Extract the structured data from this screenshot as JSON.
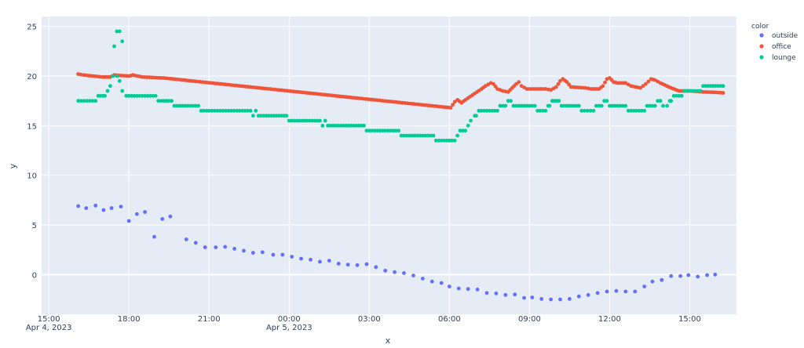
{
  "chart_data": {
    "type": "scatter",
    "title": "",
    "xlabel": "x",
    "ylabel": "y",
    "x_range_hours": [
      -0.27,
      25.75
    ],
    "ylim": [
      -4,
      26
    ],
    "x_ticks": [
      {
        "label": "15:00",
        "sublabel": "Apr 4, 2023",
        "h": 0
      },
      {
        "label": "18:00",
        "sublabel": "",
        "h": 3
      },
      {
        "label": "21:00",
        "sublabel": "",
        "h": 6
      },
      {
        "label": "00:00",
        "sublabel": "Apr 5, 2023",
        "h": 9
      },
      {
        "label": "03:00",
        "sublabel": "",
        "h": 12
      },
      {
        "label": "06:00",
        "sublabel": "",
        "h": 15
      },
      {
        "label": "09:00",
        "sublabel": "",
        "h": 18
      },
      {
        "label": "12:00",
        "sublabel": "",
        "h": 21
      },
      {
        "label": "15:00",
        "sublabel": "",
        "h": 24
      }
    ],
    "y_ticks": [
      0,
      5,
      10,
      15,
      20,
      25
    ],
    "legend": {
      "title": "color",
      "placement": "right",
      "items": [
        "outside",
        "office",
        "lounge"
      ]
    },
    "series": [
      {
        "name": "outside",
        "color": "#636efa",
        "points": [
          [
            1.1,
            6.9
          ],
          [
            1.4,
            6.7
          ],
          [
            1.75,
            6.95
          ],
          [
            2.05,
            6.5
          ],
          [
            2.35,
            6.7
          ],
          [
            2.7,
            6.85
          ],
          [
            3.0,
            5.4
          ],
          [
            3.3,
            6.1
          ],
          [
            3.6,
            6.3
          ],
          [
            3.95,
            3.8
          ],
          [
            4.25,
            5.6
          ],
          [
            4.55,
            5.85
          ],
          [
            5.15,
            3.55
          ],
          [
            5.5,
            3.2
          ],
          [
            5.85,
            2.75
          ],
          [
            6.25,
            2.75
          ],
          [
            6.6,
            2.8
          ],
          [
            6.95,
            2.6
          ],
          [
            7.3,
            2.4
          ],
          [
            7.65,
            2.2
          ],
          [
            8.0,
            2.25
          ],
          [
            8.4,
            2.0
          ],
          [
            8.75,
            2.0
          ],
          [
            9.1,
            1.8
          ],
          [
            9.45,
            1.6
          ],
          [
            9.8,
            1.5
          ],
          [
            10.15,
            1.3
          ],
          [
            10.5,
            1.4
          ],
          [
            10.85,
            1.1
          ],
          [
            11.2,
            1.0
          ],
          [
            11.55,
            0.95
          ],
          [
            11.9,
            1.05
          ],
          [
            12.25,
            0.75
          ],
          [
            12.6,
            0.4
          ],
          [
            12.95,
            0.25
          ],
          [
            13.3,
            0.15
          ],
          [
            13.65,
            -0.1
          ],
          [
            14.0,
            -0.4
          ],
          [
            14.35,
            -0.7
          ],
          [
            14.7,
            -0.85
          ],
          [
            15.0,
            -1.2
          ],
          [
            15.35,
            -1.4
          ],
          [
            15.7,
            -1.45
          ],
          [
            16.05,
            -1.5
          ],
          [
            16.4,
            -1.85
          ],
          [
            16.75,
            -1.9
          ],
          [
            17.1,
            -2.05
          ],
          [
            17.45,
            -2.0
          ],
          [
            17.8,
            -2.35
          ],
          [
            18.1,
            -2.3
          ],
          [
            18.45,
            -2.45
          ],
          [
            18.8,
            -2.5
          ],
          [
            19.15,
            -2.5
          ],
          [
            19.5,
            -2.45
          ],
          [
            19.85,
            -2.2
          ],
          [
            20.2,
            -2.05
          ],
          [
            20.55,
            -1.85
          ],
          [
            20.9,
            -1.7
          ],
          [
            21.25,
            -1.65
          ],
          [
            21.6,
            -1.7
          ],
          [
            21.95,
            -1.7
          ],
          [
            22.3,
            -1.2
          ],
          [
            22.6,
            -0.7
          ],
          [
            22.95,
            -0.55
          ],
          [
            23.3,
            -0.15
          ],
          [
            23.65,
            -0.15
          ],
          [
            23.95,
            -0.05
          ],
          [
            24.3,
            -0.2
          ],
          [
            24.65,
            -0.05
          ],
          [
            24.95,
            0.0
          ]
        ]
      },
      {
        "name": "office",
        "color": "#ef553b",
        "anchors": [
          [
            1.1,
            20.2
          ],
          [
            1.3,
            20.1
          ],
          [
            2.0,
            19.9
          ],
          [
            2.3,
            19.9
          ],
          [
            2.45,
            20.1
          ],
          [
            3.0,
            20.0
          ],
          [
            3.15,
            20.1
          ],
          [
            3.5,
            19.9
          ],
          [
            4.3,
            19.8
          ],
          [
            15.05,
            16.8
          ],
          [
            15.2,
            17.4
          ],
          [
            15.3,
            17.6
          ],
          [
            15.45,
            17.3
          ],
          [
            15.6,
            17.6
          ],
          [
            16.2,
            18.7
          ],
          [
            16.35,
            19.0
          ],
          [
            16.55,
            19.3
          ],
          [
            16.65,
            19.2
          ],
          [
            16.8,
            18.7
          ],
          [
            17.0,
            18.5
          ],
          [
            17.2,
            18.4
          ],
          [
            17.35,
            18.8
          ],
          [
            17.5,
            19.2
          ],
          [
            17.6,
            19.4
          ],
          [
            17.7,
            19.0
          ],
          [
            17.9,
            18.7
          ],
          [
            18.6,
            18.7
          ],
          [
            18.8,
            18.6
          ],
          [
            19.0,
            18.9
          ],
          [
            19.15,
            19.5
          ],
          [
            19.25,
            19.7
          ],
          [
            19.4,
            19.4
          ],
          [
            19.55,
            18.9
          ],
          [
            20.1,
            18.8
          ],
          [
            20.3,
            18.7
          ],
          [
            20.6,
            18.7
          ],
          [
            20.75,
            19.0
          ],
          [
            20.9,
            19.7
          ],
          [
            21.0,
            19.8
          ],
          [
            21.15,
            19.4
          ],
          [
            21.3,
            19.3
          ],
          [
            21.6,
            19.3
          ],
          [
            21.8,
            19.0
          ],
          [
            22.15,
            18.8
          ],
          [
            22.35,
            19.2
          ],
          [
            22.55,
            19.7
          ],
          [
            22.7,
            19.6
          ],
          [
            22.9,
            19.3
          ],
          [
            23.3,
            18.8
          ],
          [
            23.6,
            18.5
          ],
          [
            24.0,
            18.5
          ],
          [
            24.5,
            18.4
          ],
          [
            25.0,
            18.35
          ],
          [
            25.25,
            18.3
          ]
        ],
        "step_hours": 0.085
      },
      {
        "name": "lounge",
        "color": "#00cc96",
        "runs": [
          [
            1.1,
            1.75,
            17.5
          ],
          [
            1.85,
            2.1,
            18.0
          ],
          [
            2.2,
            2.2,
            18.5
          ],
          [
            2.3,
            2.3,
            19.0
          ],
          [
            2.4,
            2.55,
            20.0
          ],
          [
            2.65,
            2.65,
            19.5
          ],
          [
            2.75,
            2.8,
            18.5
          ],
          [
            2.9,
            4.0,
            18.0
          ],
          [
            4.1,
            4.6,
            17.5
          ],
          [
            4.7,
            5.6,
            17.0
          ],
          [
            5.7,
            7.55,
            16.5
          ],
          [
            7.65,
            7.65,
            16.0
          ],
          [
            7.75,
            7.75,
            16.5
          ],
          [
            7.85,
            8.9,
            16.0
          ],
          [
            9.0,
            10.15,
            15.5
          ],
          [
            10.25,
            10.25,
            15.0
          ],
          [
            10.35,
            10.35,
            15.5
          ],
          [
            10.45,
            11.8,
            15.0
          ],
          [
            11.9,
            13.1,
            14.5
          ],
          [
            13.2,
            14.4,
            14.0
          ],
          [
            14.5,
            15.2,
            13.5
          ],
          [
            15.3,
            15.3,
            14.0
          ],
          [
            15.4,
            15.4,
            14.5
          ],
          [
            15.5,
            15.6,
            14.5
          ],
          [
            15.7,
            15.7,
            15.0
          ],
          [
            15.8,
            15.85,
            15.5
          ],
          [
            15.95,
            16.0,
            16.0
          ],
          [
            16.1,
            16.8,
            16.5
          ],
          [
            16.9,
            17.1,
            17.0
          ],
          [
            17.2,
            17.3,
            17.5
          ],
          [
            17.4,
            18.2,
            17.0
          ],
          [
            18.3,
            18.6,
            16.5
          ],
          [
            18.7,
            18.75,
            17.0
          ],
          [
            18.85,
            19.1,
            17.5
          ],
          [
            19.2,
            19.85,
            17.0
          ],
          [
            19.95,
            20.4,
            16.5
          ],
          [
            20.5,
            20.7,
            17.0
          ],
          [
            20.8,
            20.9,
            17.5
          ],
          [
            21.0,
            21.6,
            17.0
          ],
          [
            21.7,
            22.3,
            16.5
          ],
          [
            22.4,
            22.7,
            17.0
          ],
          [
            22.8,
            22.9,
            17.5
          ],
          [
            23.0,
            23.15,
            17.0
          ],
          [
            23.25,
            23.3,
            17.5
          ],
          [
            23.4,
            23.7,
            18.0
          ],
          [
            23.8,
            24.4,
            18.5
          ],
          [
            24.5,
            25.25,
            19.0
          ]
        ],
        "spikes": [
          [
            2.45,
            23.0
          ],
          [
            2.55,
            24.5
          ],
          [
            2.65,
            24.5
          ],
          [
            2.75,
            23.5
          ]
        ],
        "step_hours": 0.1
      }
    ]
  }
}
